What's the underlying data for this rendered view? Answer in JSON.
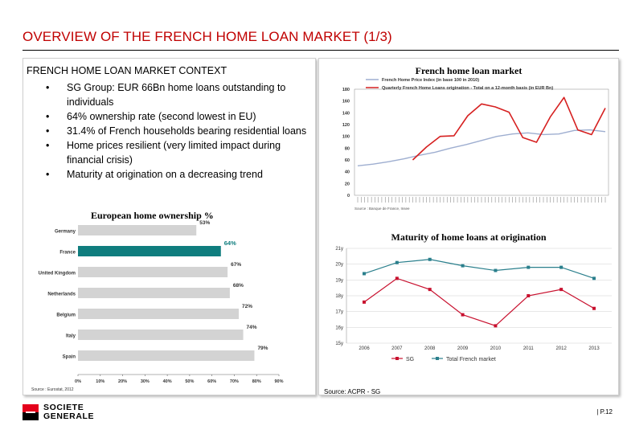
{
  "header": {
    "title": "OVERVIEW OF THE FRENCH HOME LOAN MARKET (1/3)"
  },
  "context": {
    "heading": "FRENCH HOME LOAN MARKET CONTEXT",
    "bullet_char": "•",
    "bullets": [
      "SG Group: EUR 66Bn home loans outstanding to individuals",
      "64% ownership rate (second lowest in EU)",
      "31.4% of French households bearing residential loans",
      "Home prices resilient (very limited impact during financial crisis)",
      "Maturity at origination on a decreasing trend"
    ]
  },
  "chart_data": [
    {
      "type": "bar",
      "orientation": "horizontal",
      "title": "European home ownership %",
      "categories": [
        "Germany",
        "France",
        "United Kingdom",
        "Netherlands",
        "Belgium",
        "Italy",
        "Spain"
      ],
      "values": [
        53,
        64,
        67,
        68,
        72,
        74,
        79
      ],
      "value_labels": [
        "53%",
        "64%",
        "67%",
        "68%",
        "72%",
        "74%",
        "79%"
      ],
      "xlim": [
        0,
        90
      ],
      "x_ticks": [
        "0%",
        "10%",
        "20%",
        "30%",
        "40%",
        "50%",
        "60%",
        "70%",
        "80%",
        "90%"
      ],
      "highlight": "France",
      "colors": {
        "default": "#d3d3d3",
        "highlight": "#0f7d7e"
      },
      "source": "Source : Eurostat, 2012"
    },
    {
      "type": "line",
      "title": "French home loan market",
      "ylim": [
        0,
        180
      ],
      "y_ticks": [
        "0",
        "20",
        "40",
        "60",
        "80",
        "100",
        "120",
        "140",
        "160",
        "180"
      ],
      "series": [
        {
          "name": "French Home Price Index (in base 100 in 2010)",
          "color": "#9eaed0",
          "values": [
            50,
            53,
            57,
            62,
            68,
            73,
            80,
            86,
            93,
            100,
            104,
            106,
            103,
            104,
            110,
            111,
            108
          ]
        },
        {
          "name": "Quarterly French Home Loans origination - Total on a 12-month basis (in EUR Bn)",
          "color": "#d62020",
          "values": [
            null,
            null,
            null,
            null,
            60,
            82,
            100,
            101,
            135,
            155,
            150,
            141,
            98,
            90,
            133,
            166,
            111,
            103,
            148
          ]
        }
      ],
      "source": "Source : Banque de France, Insee"
    },
    {
      "type": "line",
      "title": "Maturity of home loans at origination",
      "categories": [
        "2006",
        "2007",
        "2008",
        "2009",
        "2010",
        "2011",
        "2012",
        "2013"
      ],
      "y_ticks": [
        "15y",
        "16y",
        "17y",
        "18y",
        "19y",
        "20y",
        "21y"
      ],
      "ylim": [
        15,
        21
      ],
      "series": [
        {
          "name": "SG",
          "color": "#c8102e",
          "values": [
            17.6,
            19.1,
            18.4,
            16.8,
            16.1,
            18.0,
            18.4,
            17.2
          ]
        },
        {
          "name": "Total French market",
          "color": "#2a7f8c",
          "values": [
            19.4,
            20.1,
            20.3,
            19.9,
            19.6,
            19.8,
            19.8,
            19.1
          ]
        }
      ]
    }
  ],
  "source_bottom": "Source: ACPR - SG",
  "logo": {
    "line1": "SOCIETE",
    "line2": "GENERALE"
  },
  "footer": {
    "page": "| P.12"
  }
}
